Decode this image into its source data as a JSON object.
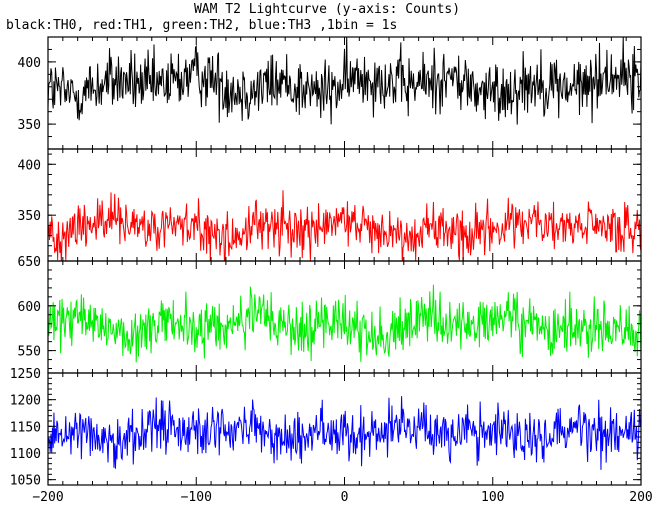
{
  "title": "WAM T2 Lightcurve (y-axis: Counts)",
  "subtitle": "black:TH0, red:TH1, green:TH2, blue:TH3 ,1bin = 1s",
  "chart_data": {
    "type": "line",
    "x_range": [
      -200,
      200
    ],
    "x_ticks": [
      -200,
      -100,
      0,
      100,
      200
    ],
    "x_tick_labels": [
      "−200",
      "−100",
      "0",
      "100",
      "200"
    ],
    "series_seed_start": -200,
    "series_seed_step": 0.5,
    "panels": [
      {
        "name": "TH0",
        "color": "#000000",
        "ylim": [
          330,
          420
        ],
        "yticks": [
          350,
          400
        ],
        "ytick_labels": [
          "350",
          "400"
        ],
        "mean": 382,
        "amplitude": 18
      },
      {
        "name": "TH1",
        "color": "#ff0000",
        "ylim": [
          305,
          415
        ],
        "yticks": [
          350,
          400
        ],
        "ytick_labels": [
          "350",
          "400"
        ],
        "mean": 337,
        "amplitude": 18
      },
      {
        "name": "TH2",
        "color": "#00ee00",
        "ylim": [
          525,
          650
        ],
        "yticks": [
          550,
          600,
          650
        ],
        "ytick_labels": [
          "550",
          "600",
          "650"
        ],
        "mean": 578,
        "amplitude": 22
      },
      {
        "name": "TH3",
        "color": "#0000ff",
        "ylim": [
          1040,
          1250
        ],
        "yticks": [
          1050,
          1100,
          1150,
          1200,
          1250
        ],
        "ytick_labels": [
          "1050",
          "1100",
          "1150",
          "1200",
          "1250"
        ],
        "mean": 1140,
        "amplitude": 35
      }
    ]
  }
}
